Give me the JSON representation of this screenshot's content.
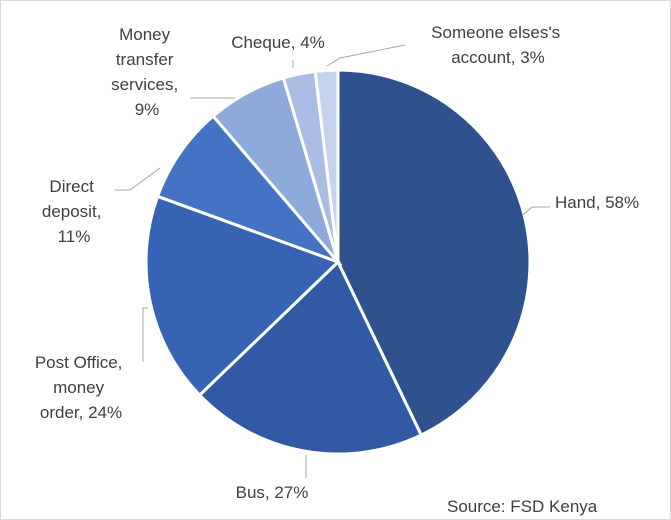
{
  "chart_data": {
    "type": "pie",
    "title": "",
    "slices": [
      {
        "label": "Hand",
        "pct": "58%",
        "value": 43.0,
        "color": "#2f528f"
      },
      {
        "label": "Bus",
        "pct": "27%",
        "value": 20.0,
        "color": "#3259a3"
      },
      {
        "label": "Post Office, money order",
        "pct": "24%",
        "value": 17.8,
        "color": "#3763b5"
      },
      {
        "label": "Direct deposit",
        "pct": "11%",
        "value": 8.2,
        "color": "#4472c4"
      },
      {
        "label": "Money transfer services",
        "pct": "9%",
        "value": 6.7,
        "color": "#8eaadb"
      },
      {
        "label": "Cheque",
        "pct": "4%",
        "value": 2.7,
        "color": "#a9bde3"
      },
      {
        "label": "Someone elses's account",
        "pct": "3%",
        "value": 1.9,
        "color": "#c5d3ee"
      }
    ],
    "label_lines": [
      [
        "Hand, 58%"
      ],
      [
        "Bus, 27%"
      ],
      [
        "Post Office,",
        "money",
        "order, 24%"
      ],
      [
        "Direct",
        "deposit,",
        "11%"
      ],
      [
        "Money",
        "transfer",
        "services,",
        "9%"
      ],
      [
        "Cheque, 4%"
      ],
      [
        "Someone elses's",
        "account, 3%"
      ]
    ],
    "source": "Source: FSD Kenya"
  }
}
